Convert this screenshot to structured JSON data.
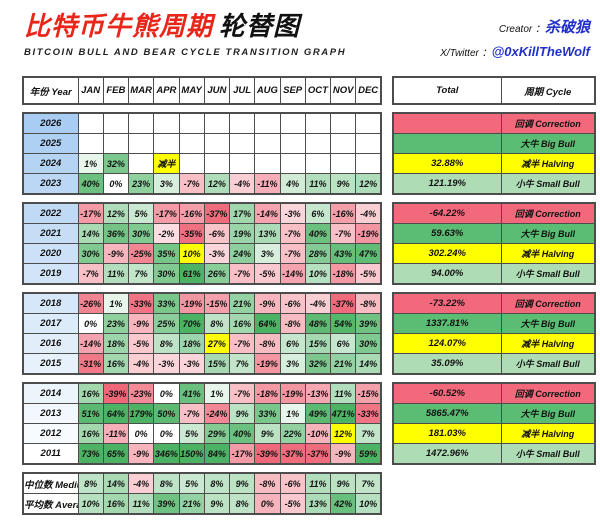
{
  "header": {
    "title_cn_red": "比特币牛熊周期",
    "title_cn_black": "轮替图",
    "subtitle": "BITCOIN BULL AND BEAR CYCLE TRANSITION GRAPH",
    "creator_label": "Creator ：",
    "creator_name": "杀破狼",
    "twitter_label": "X/Twitter ：",
    "twitter_handle": "@0xKillTheWolf"
  },
  "colors": {
    "title_red": "#e8261a",
    "link_blue": "#2130c9",
    "positive_green": "#4cb364",
    "negative_red": "#ee6677",
    "halving_yellow": "#ffff00",
    "correction_red": "#f2697c",
    "big_bull_green": "#5abd73",
    "small_bull_green": "#aedcb5",
    "pink_light": "#f5b3bb",
    "border_gray": "#4d4d4d"
  },
  "table_headers": {
    "year": "年份 Year",
    "months": [
      "JAN",
      "FEB",
      "MAR",
      "APR",
      "MAY",
      "JUN",
      "JUL",
      "AUG",
      "SEP",
      "OCT",
      "NOV",
      "DEC"
    ],
    "total": "Total",
    "cycle": "周期 Cycle"
  },
  "groups": [
    {
      "rows": [
        {
          "year": "2026",
          "year_color": "#a9ccf2",
          "values": [
            "",
            "",
            "",
            "",
            "",
            "",
            "",
            "",
            "",
            "",
            "",
            ""
          ],
          "overrides": {},
          "total": "",
          "total_style": "correction",
          "cycle": "回调 Correction",
          "cycle_style": "correction"
        },
        {
          "year": "2025",
          "year_color": "#aed0f3",
          "values": [
            "",
            "",
            "",
            "",
            "",
            "",
            "",
            "",
            "",
            "",
            "",
            ""
          ],
          "overrides": {},
          "total": "",
          "total_style": "bigbull",
          "cycle": "大牛 Big Bull",
          "cycle_style": "bigbull"
        },
        {
          "year": "2024",
          "year_color": "#b5d4f4",
          "values": [
            "1%",
            "32%",
            "",
            "减半",
            "",
            "",
            "",
            "",
            "",
            "",
            "",
            ""
          ],
          "overrides": {
            "3": "halving"
          },
          "total": "32.88%",
          "total_style": "halving",
          "cycle": "减半 Halving",
          "cycle_style": "halving"
        },
        {
          "year": "2023",
          "year_color": "#bbd7f5",
          "values": [
            "40%",
            "0%",
            "23%",
            "3%",
            "-7%",
            "12%",
            "-4%",
            "-11%",
            "4%",
            "11%",
            "9%",
            "12%"
          ],
          "overrides": {},
          "total": "121.19%",
          "total_style": "smallbull",
          "cycle": "小牛 Small Bull",
          "cycle_style": "smallbull"
        }
      ]
    },
    {
      "rows": [
        {
          "year": "2022",
          "year_color": "#c0daf5",
          "values": [
            "-17%",
            "12%",
            "5%",
            "-17%",
            "-16%",
            "-37%",
            "17%",
            "-14%",
            "-3%",
            "6%",
            "-16%",
            "-4%"
          ],
          "overrides": {},
          "total": "-64.22%",
          "total_style": "correction",
          "cycle": "回调 Correction",
          "cycle_style": "correction"
        },
        {
          "year": "2021",
          "year_color": "#c6ddf6",
          "values": [
            "14%",
            "36%",
            "30%",
            "-2%",
            "-35%",
            "-6%",
            "19%",
            "13%",
            "-7%",
            "40%",
            "-7%",
            "-19%"
          ],
          "overrides": {},
          "total": "59.63%",
          "total_style": "bigbull",
          "cycle": "大牛 Big Bull",
          "cycle_style": "bigbull"
        },
        {
          "year": "2020",
          "year_color": "#cce1f7",
          "values": [
            "30%",
            "-9%",
            "-25%",
            "35%",
            "10%",
            "-3%",
            "24%",
            "3%",
            "-7%",
            "28%",
            "43%",
            "47%"
          ],
          "overrides": {
            "4": "halving"
          },
          "total": "302.24%",
          "total_style": "halving",
          "cycle": "减半 Halving",
          "cycle_style": "halving"
        },
        {
          "year": "2019",
          "year_color": "#d1e4f8",
          "values": [
            "-7%",
            "11%",
            "7%",
            "30%",
            "61%",
            "26%",
            "-7%",
            "-5%",
            "-14%",
            "10%",
            "-18%",
            "-5%"
          ],
          "overrides": {},
          "total": "94.00%",
          "total_style": "smallbull",
          "cycle": "小牛 Small Bull",
          "cycle_style": "smallbull"
        }
      ]
    },
    {
      "rows": [
        {
          "year": "2018",
          "year_color": "#d6e7f9",
          "values": [
            "-26%",
            "1%",
            "-33%",
            "33%",
            "-19%",
            "-15%",
            "21%",
            "-9%",
            "-6%",
            "-4%",
            "-37%",
            "-8%"
          ],
          "overrides": {},
          "total": "-73.22%",
          "total_style": "correction",
          "cycle": "回调 Correction",
          "cycle_style": "correction"
        },
        {
          "year": "2017",
          "year_color": "#dcebfa",
          "values": [
            "0%",
            "23%",
            "-9%",
            "25%",
            "70%",
            "8%",
            "16%",
            "64%",
            "-8%",
            "48%",
            "54%",
            "39%"
          ],
          "overrides": {},
          "total": "1337.81%",
          "total_style": "bigbull",
          "cycle": "大牛 Big Bull",
          "cycle_style": "bigbull"
        },
        {
          "year": "2016",
          "year_color": "#e1eefa",
          "values": [
            "-14%",
            "18%",
            "-5%",
            "8%",
            "18%",
            "27%",
            "-7%",
            "-8%",
            "6%",
            "15%",
            "6%",
            "30%"
          ],
          "overrides": {
            "5": "halving"
          },
          "total": "124.07%",
          "total_style": "halving",
          "cycle": "减半 Halving",
          "cycle_style": "halving"
        },
        {
          "year": "2015",
          "year_color": "#e7f1fb",
          "values": [
            "-31%",
            "16%",
            "-4%",
            "-3%",
            "-3%",
            "15%",
            "7%",
            "-19%",
            "3%",
            "32%",
            "21%",
            "14%"
          ],
          "overrides": {},
          "total": "35.09%",
          "total_style": "smallbull",
          "cycle": "小牛 Small Bull",
          "cycle_style": "smallbull"
        }
      ]
    },
    {
      "rows": [
        {
          "year": "2014",
          "year_color": "#ecf4fc",
          "values": [
            "16%",
            "-39%",
            "-23%",
            "0%",
            "41%",
            "1%",
            "-7%",
            "-18%",
            "-19%",
            "-13%",
            "11%",
            "-15%"
          ],
          "overrides": {},
          "total": "-60.52%",
          "total_style": "correction",
          "cycle": "回调 Correction",
          "cycle_style": "correction"
        },
        {
          "year": "2013",
          "year_color": "#f2f8fd",
          "values": [
            "51%",
            "64%",
            "179%",
            "50%",
            "-7%",
            "-24%",
            "9%",
            "33%",
            "1%",
            "49%",
            "471%",
            "-33%"
          ],
          "overrides": {},
          "total": "5865.47%",
          "total_style": "bigbull",
          "cycle": "大牛 Big Bull",
          "cycle_style": "bigbull"
        },
        {
          "year": "2012",
          "year_color": "#f7fbfe",
          "values": [
            "16%",
            "-11%",
            "0%",
            "0%",
            "5%",
            "29%",
            "40%",
            "9%",
            "22%",
            "-10%",
            "12%",
            "7%"
          ],
          "overrides": {
            "10": "halving"
          },
          "total": "181.03%",
          "total_style": "halving",
          "cycle": "减半 Halving",
          "cycle_style": "halving"
        },
        {
          "year": "2011",
          "year_color": "#ffffff",
          "values": [
            "73%",
            "65%",
            "-9%",
            "346%",
            "150%",
            "84%",
            "-17%",
            "-39%",
            "-37%",
            "-37%",
            "-9%",
            "59%"
          ],
          "overrides": {},
          "total": "1472.96%",
          "total_style": "smallbull",
          "cycle": "小牛 Small Bull",
          "cycle_style": "smallbull"
        }
      ]
    }
  ],
  "summary_rows": [
    {
      "label": "中位数 Medium",
      "values": [
        "8%",
        "14%",
        "-4%",
        "8%",
        "5%",
        "8%",
        "9%",
        "-8%",
        "-6%",
        "11%",
        "9%",
        "7%"
      ],
      "overrides": {}
    },
    {
      "label": "平均数 Average",
      "values": [
        "10%",
        "16%",
        "11%",
        "39%",
        "21%",
        "9%",
        "8%",
        "0%",
        "-5%",
        "13%",
        "42%",
        "10%"
      ],
      "overrides": {
        "7": "pinklight"
      }
    }
  ]
}
